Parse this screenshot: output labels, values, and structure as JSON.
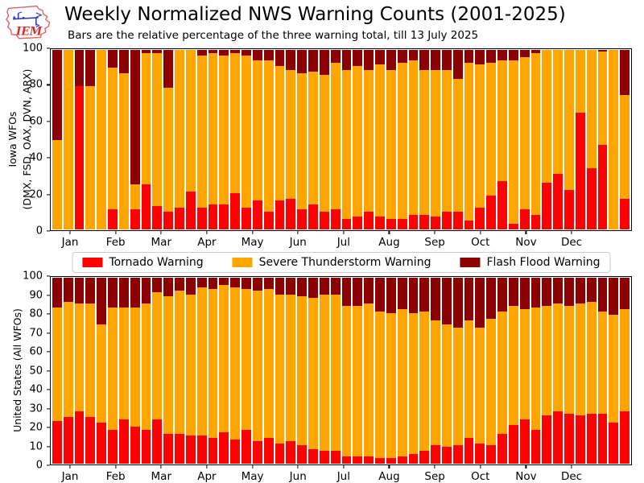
{
  "header": {
    "title": "Weekly Normalized NWS Warning Counts (2001-2025)",
    "subtitle": "Bars are the relative percentage of the three warning total, till 13 July 2025",
    "logo_text": "IEM"
  },
  "legend": {
    "items": [
      {
        "label": "Tornado Warning",
        "color": "#ff0000"
      },
      {
        "label": "Severe Thunderstorm Warning",
        "color": "#ffa500"
      },
      {
        "label": "Flash Flood Warning",
        "color": "#8b0000"
      }
    ]
  },
  "colors": {
    "tornado": "#ff0000",
    "severe": "#ffa500",
    "flashflood": "#8b0000",
    "axis": "#000000"
  },
  "chart_data": [
    {
      "type": "bar",
      "stacked": true,
      "normalized_percent": true,
      "ylabel_lines": [
        "Iowa WFOs",
        "(DMX, FSD, OAX, DVN, ARX)"
      ],
      "ylim": [
        0,
        100
      ],
      "yticks": [
        0,
        20,
        40,
        60,
        80,
        100
      ],
      "x_unit": "week of year (52 weekly bars)",
      "xticklabels": [
        "Jan",
        "Feb",
        "Mar",
        "Apr",
        "May",
        "Jun",
        "Jul",
        "Aug",
        "Sep",
        "Oct",
        "Nov",
        "Dec"
      ],
      "grid": false,
      "series": [
        {
          "name": "Tornado Warning",
          "color": "#ff0000",
          "values": [
            0,
            0,
            80,
            0,
            0,
            11,
            0,
            11,
            25,
            13,
            10,
            12,
            21,
            12,
            14,
            14,
            20,
            12,
            16,
            10,
            16,
            17,
            11,
            14,
            10,
            11,
            6,
            7,
            10,
            7,
            6,
            6,
            8,
            8,
            7,
            10,
            10,
            5,
            12,
            19,
            27,
            3,
            11,
            8,
            26,
            31,
            22,
            65,
            34,
            47,
            0,
            17
          ]
        },
        {
          "name": "Severe Thunderstorm Warning",
          "color": "#ffa500",
          "values": [
            50,
            100,
            0,
            80,
            100,
            79,
            87,
            14,
            73,
            85,
            69,
            88,
            79,
            85,
            84,
            83,
            78,
            85,
            78,
            84,
            75,
            72,
            76,
            74,
            76,
            82,
            83,
            84,
            79,
            85,
            83,
            87,
            86,
            81,
            82,
            79,
            74,
            88,
            80,
            74,
            67,
            91,
            85,
            90,
            74,
            69,
            78,
            35,
            66,
            52,
            100,
            58
          ]
        },
        {
          "name": "Flash Flood Warning",
          "color": "#8b0000",
          "values": [
            50,
            0,
            20,
            20,
            0,
            10,
            13,
            75,
            2,
            2,
            21,
            0,
            0,
            3,
            2,
            3,
            2,
            3,
            6,
            6,
            9,
            11,
            13,
            12,
            14,
            7,
            11,
            9,
            11,
            8,
            11,
            7,
            6,
            11,
            11,
            11,
            16,
            7,
            8,
            7,
            6,
            6,
            4,
            2,
            0,
            0,
            0,
            0,
            0,
            1,
            0,
            25
          ]
        }
      ]
    },
    {
      "type": "bar",
      "stacked": true,
      "normalized_percent": true,
      "ylabel_lines": [
        "United States (All WFOs)"
      ],
      "ylim": [
        0,
        100
      ],
      "yticks": [
        0,
        10,
        20,
        30,
        40,
        50,
        60,
        70,
        80,
        90,
        100
      ],
      "x_unit": "week of year (52 weekly bars)",
      "xticklabels": [
        "Jan",
        "Feb",
        "Mar",
        "Apr",
        "May",
        "Jun",
        "Jul",
        "Aug",
        "Sep",
        "Oct",
        "Nov",
        "Dec"
      ],
      "grid": false,
      "series": [
        {
          "name": "Tornado Warning",
          "color": "#ff0000",
          "values": [
            23,
            25,
            28,
            25,
            22,
            18,
            24,
            20,
            18,
            24,
            16,
            16,
            15,
            15,
            14,
            17,
            13,
            18,
            12,
            14,
            11,
            12,
            10,
            8,
            7,
            7,
            4,
            4,
            4,
            3,
            3,
            4,
            5,
            7,
            10,
            9,
            10,
            14,
            11,
            10,
            16,
            21,
            24,
            18,
            26,
            28,
            27,
            26,
            27,
            27,
            22,
            28
          ]
        },
        {
          "name": "Severe Thunderstorm Warning",
          "color": "#ffa500",
          "values": [
            61,
            62,
            58,
            61,
            53,
            66,
            60,
            64,
            68,
            68,
            74,
            77,
            76,
            80,
            80,
            79,
            82,
            76,
            81,
            80,
            80,
            79,
            80,
            81,
            84,
            84,
            81,
            81,
            82,
            79,
            78,
            79,
            76,
            75,
            67,
            66,
            63,
            63,
            62,
            68,
            66,
            64,
            59,
            66,
            59,
            58,
            58,
            60,
            60,
            55,
            58,
            55
          ]
        },
        {
          "name": "Flash Flood Warning",
          "color": "#8b0000",
          "values": [
            16,
            13,
            14,
            14,
            25,
            16,
            16,
            16,
            14,
            8,
            10,
            7,
            9,
            5,
            6,
            4,
            5,
            6,
            7,
            6,
            9,
            9,
            10,
            11,
            9,
            9,
            15,
            15,
            14,
            18,
            19,
            17,
            19,
            18,
            23,
            25,
            27,
            23,
            27,
            22,
            18,
            15,
            17,
            16,
            15,
            14,
            15,
            14,
            13,
            18,
            20,
            17
          ]
        }
      ]
    }
  ]
}
